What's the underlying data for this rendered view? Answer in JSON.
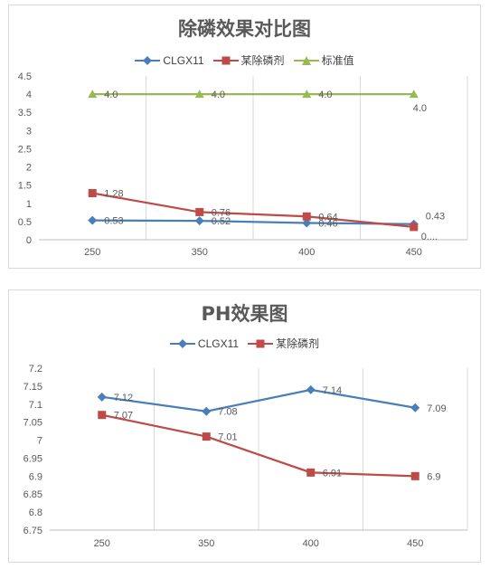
{
  "charts": [
    {
      "title": "除磷效果对比图",
      "legend": [
        {
          "name": "CLGX11",
          "color": "#4a7ebb",
          "marker": "diamond"
        },
        {
          "name": "某除磷剂",
          "color": "#be4b48",
          "marker": "square"
        },
        {
          "name": "标准值",
          "color": "#98b954",
          "marker": "triangle"
        }
      ]
    },
    {
      "title": "PH效果图",
      "legend": [
        {
          "name": "CLGX11",
          "color": "#4a7ebb",
          "marker": "diamond"
        },
        {
          "name": "某除磷剂",
          "color": "#be4b48",
          "marker": "square"
        }
      ]
    }
  ],
  "chart_data": [
    {
      "type": "line",
      "title": "除磷效果对比图",
      "categories": [
        "250",
        "350",
        "400",
        "450"
      ],
      "ylim": [
        0,
        4.5
      ],
      "yticks": [
        "0",
        "0.5",
        "1",
        "1.5",
        "2",
        "2.5",
        "3",
        "3.5",
        "4",
        "4.5"
      ],
      "grid": "vertical",
      "legend_position": "top",
      "series": [
        {
          "name": "CLGX11",
          "color": "#4a7ebb",
          "marker": "diamond",
          "values": [
            0.53,
            0.52,
            0.46,
            0.43
          ],
          "labels": [
            "0.53",
            "0.52",
            "0.46",
            "0.43"
          ]
        },
        {
          "name": "某除磷剂",
          "color": "#be4b48",
          "marker": "square",
          "values": [
            1.28,
            0.76,
            0.64,
            0.35
          ],
          "labels": [
            "1.28",
            "0.76",
            "0.64",
            "0...."
          ]
        },
        {
          "name": "标准值",
          "color": "#98b954",
          "marker": "triangle",
          "values": [
            4.0,
            4.0,
            4.0,
            4.0
          ],
          "labels": [
            "4.0",
            "4.0",
            "4.0",
            "4.0"
          ]
        }
      ]
    },
    {
      "type": "line",
      "title": "PH效果图",
      "categories": [
        "250",
        "350",
        "400",
        "450"
      ],
      "ylim": [
        6.75,
        7.2
      ],
      "yticks": [
        "6.75",
        "6.8",
        "6.85",
        "6.9",
        "6.95",
        "7",
        "7.05",
        "7.1",
        "7.15",
        "7.2"
      ],
      "grid": "vertical",
      "legend_position": "top",
      "series": [
        {
          "name": "CLGX11",
          "color": "#4a7ebb",
          "marker": "diamond",
          "values": [
            7.12,
            7.08,
            7.14,
            7.09
          ],
          "labels": [
            "7.12",
            "7.08",
            "7.14",
            "7.09"
          ]
        },
        {
          "name": "某除磷剂",
          "color": "#be4b48",
          "marker": "square",
          "values": [
            7.07,
            7.01,
            6.91,
            6.9
          ],
          "labels": [
            "7.07",
            "7.01",
            "6.91",
            "6.9"
          ]
        }
      ]
    }
  ]
}
